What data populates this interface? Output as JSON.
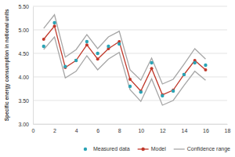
{
  "chart_data": {
    "type": "line",
    "y_label": "Specific energy consumption in notional units",
    "x": [
      1,
      2,
      3,
      4,
      5,
      6,
      7,
      8,
      9,
      10,
      11,
      12,
      13,
      14,
      15,
      16
    ],
    "series": [
      {
        "name": "Measured data",
        "type": "scatter",
        "color": "#2ba3b5",
        "marker": "circle",
        "values": [
          4.65,
          5.15,
          4.22,
          4.35,
          4.75,
          4.5,
          4.65,
          4.7,
          3.8,
          3.68,
          4.3,
          3.6,
          3.7,
          4.05,
          4.3,
          4.25
        ]
      },
      {
        "name": "Model",
        "type": "line",
        "color": "#c0392b",
        "marker": "circle",
        "line_style": "solid",
        "values": [
          4.8,
          5.08,
          4.2,
          4.35,
          4.68,
          4.38,
          4.6,
          4.75,
          3.95,
          3.7,
          4.18,
          3.62,
          3.72,
          4.05,
          4.35,
          4.15
        ]
      },
      {
        "name": "Confidence range",
        "type": "line",
        "color": "#a6a6a6",
        "line_style": "solid",
        "values": [
          5.03,
          5.32,
          4.42,
          4.58,
          4.9,
          4.6,
          4.85,
          4.97,
          4.15,
          3.93,
          4.4,
          3.85,
          3.95,
          4.27,
          4.6,
          4.38
        ],
        "lower": [
          4.58,
          4.85,
          3.98,
          4.12,
          4.45,
          4.15,
          4.38,
          4.52,
          3.73,
          3.48,
          3.96,
          3.4,
          3.5,
          3.82,
          4.12,
          3.93
        ]
      }
    ],
    "xlim": [
      0,
      18
    ],
    "xticks": [
      0,
      2,
      4,
      6,
      8,
      10,
      12,
      14,
      16,
      18
    ],
    "ylim": [
      3,
      5.5
    ],
    "yticks": [
      {
        "value": 3,
        "label": "3.00"
      },
      {
        "value": 3.5,
        "label": "3.50"
      },
      {
        "value": 4,
        "label": "4.00"
      },
      {
        "value": 4.5,
        "label": "4.50"
      },
      {
        "value": 5,
        "label": "5.00"
      },
      {
        "value": 5.5,
        "label": "5.50"
      }
    ],
    "grid": true,
    "legend": "bottom"
  }
}
